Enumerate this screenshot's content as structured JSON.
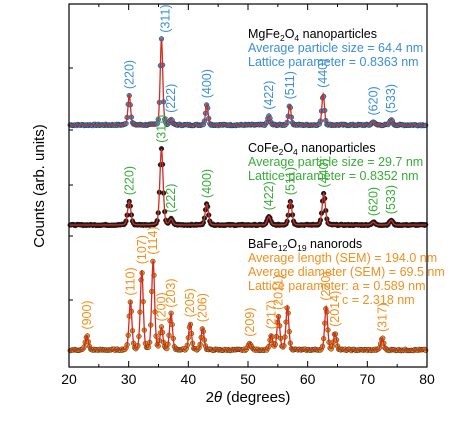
{
  "chart_data": {
    "type": "line",
    "xlabel_prefix": "2",
    "xlabel_theta": "θ",
    "xlabel_suffix": " (degrees)",
    "ylabel": "Counts (arb. units)",
    "xlim": [
      20,
      80
    ],
    "x_ticks": [
      "20",
      "30",
      "40",
      "50",
      "60",
      "70",
      "80"
    ],
    "y_ticks_shown": false,
    "colors": {
      "fit_line": "#d42a20",
      "mgfe": "#3b8fd9",
      "cofe": "#2e9e3a",
      "bafe": "#f08c1a",
      "marker_dark": "#1a1a1a",
      "mgfe_text": "#3b8fd9",
      "cofe_text": "#38ad38",
      "bafe_text": "#f0901e"
    },
    "panels": [
      {
        "id": "mgfe",
        "legend": [
          "MgFe",
          "2",
          "O",
          "4",
          " nanoparticles"
        ],
        "info": [
          "Average particle size = 64.4 nm",
          "Lattice parameter = 0.8363 nm"
        ],
        "baseline": 0.0,
        "peaks": [
          {
            "x": 30.1,
            "h": 0.26,
            "label": "(220)"
          },
          {
            "x": 35.5,
            "h": 0.75,
            "label": "(311)"
          },
          {
            "x": 37.1,
            "h": 0.05,
            "label": "(222)"
          },
          {
            "x": 43.1,
            "h": 0.18,
            "label": "(400)"
          },
          {
            "x": 53.5,
            "h": 0.08,
            "label": "(422)"
          },
          {
            "x": 57.0,
            "h": 0.17,
            "label": "(511)"
          },
          {
            "x": 62.6,
            "h": 0.27,
            "label": "(440)"
          },
          {
            "x": 71.0,
            "h": 0.03,
            "label": "(620)"
          },
          {
            "x": 74.0,
            "h": 0.05,
            "label": "(533)"
          }
        ]
      },
      {
        "id": "cofe",
        "legend": [
          "CoFe",
          "2",
          "O",
          "4",
          " nanoparticles"
        ],
        "info": [
          "Average particle size = 29.7 nm",
          "Lattice parameter = 0.8352 nm"
        ],
        "baseline": 0.0,
        "peaks": [
          {
            "x": 30.1,
            "h": 0.25,
            "label": "(220)"
          },
          {
            "x": 35.5,
            "h": 0.8,
            "label": "(311)"
          },
          {
            "x": 37.1,
            "h": 0.06,
            "label": "(222)"
          },
          {
            "x": 43.1,
            "h": 0.22,
            "label": "(400)"
          },
          {
            "x": 53.5,
            "h": 0.09,
            "label": "(422)"
          },
          {
            "x": 57.1,
            "h": 0.25,
            "label": "(511)"
          },
          {
            "x": 62.7,
            "h": 0.33,
            "label": "(440)"
          },
          {
            "x": 71.0,
            "h": 0.03,
            "label": "(620)"
          },
          {
            "x": 74.0,
            "h": 0.05,
            "label": "(533)"
          }
        ]
      },
      {
        "id": "bafe",
        "legend": [
          "BaFe",
          "12",
          "O",
          "19",
          " nanorods"
        ],
        "info": [
          "Average length (SEM) = 194.0 nm",
          "Average diameter (SEM) = 69.5 nm",
          "Lattice parameter: a = 0.589 nm",
          "c = 2.318 nm"
        ],
        "baseline": 0.0,
        "peaks": [
          {
            "x": 23.0,
            "h": 0.12,
            "label": "(900)"
          },
          {
            "x": 30.3,
            "h": 0.4,
            "label": "(110)"
          },
          {
            "x": 32.2,
            "h": 0.66,
            "label": "(107)"
          },
          {
            "x": 34.1,
            "h": 0.74,
            "label": "(114)"
          },
          {
            "x": 35.5,
            "h": 0.18,
            "label": "(200)"
          },
          {
            "x": 37.1,
            "h": 0.3,
            "label": "(203)"
          },
          {
            "x": 40.3,
            "h": 0.22,
            "label": "(205)"
          },
          {
            "x": 42.4,
            "h": 0.18,
            "label": "(206)"
          },
          {
            "x": 50.3,
            "h": 0.06,
            "label": "(209)"
          },
          {
            "x": 53.9,
            "h": 0.12,
            "label": "(217)"
          },
          {
            "x": 55.1,
            "h": 0.28,
            "label": "(2011)"
          },
          {
            "x": 56.6,
            "h": 0.36,
            "label": ""
          },
          {
            "x": 63.1,
            "h": 0.36,
            "label": "(220)"
          },
          {
            "x": 64.6,
            "h": 0.14,
            "label": "(2014)"
          },
          {
            "x": 72.5,
            "h": 0.1,
            "label": "(317)"
          }
        ]
      }
    ]
  }
}
